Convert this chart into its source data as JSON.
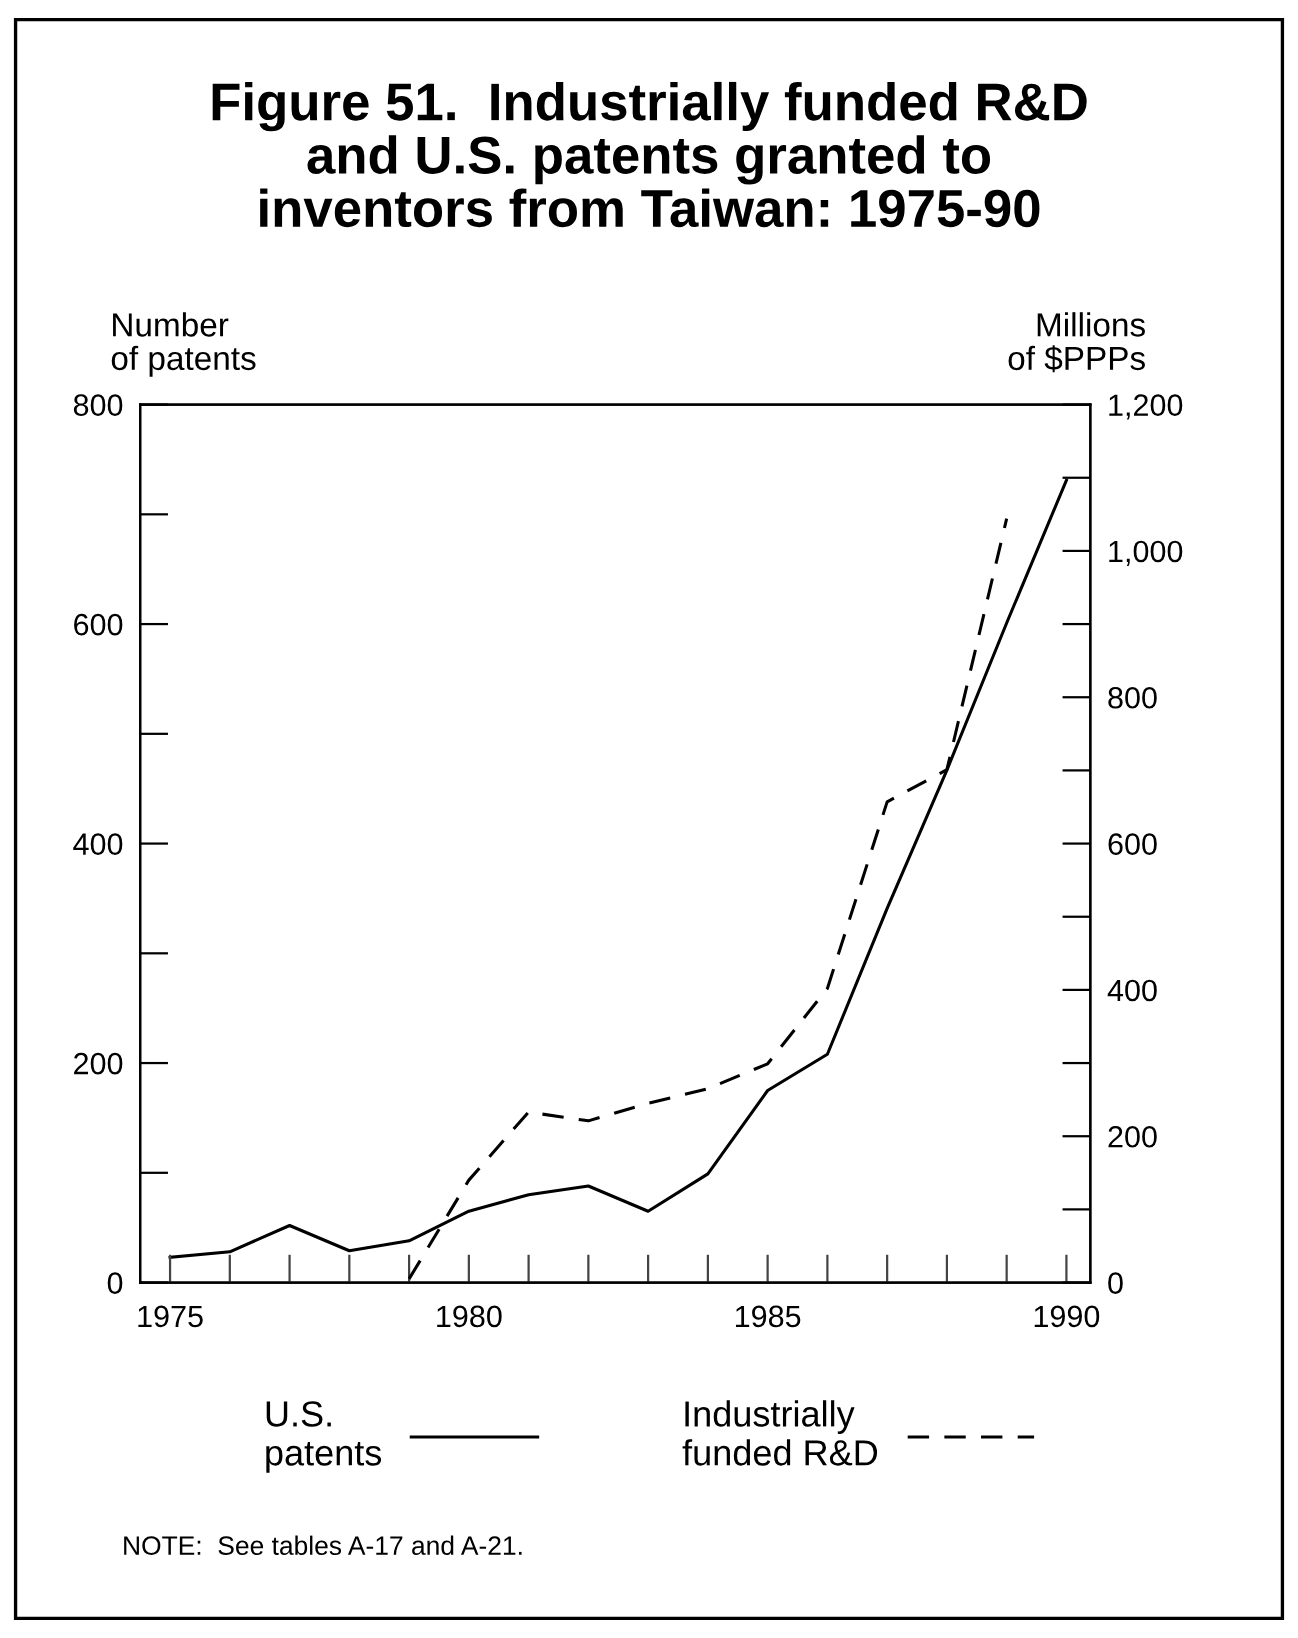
{
  "chart_data": {
    "type": "line",
    "title": "Figure 51.  Industrially funded R&D\nand U.S. patents granted to\ninventors from Taiwan: 1975-90",
    "ylabel": "Number\nof patents",
    "y2label": "Millions\nof $PPPs",
    "x": [
      1975,
      1976,
      1977,
      1978,
      1979,
      1980,
      1981,
      1982,
      1983,
      1984,
      1985,
      1986,
      1987,
      1988,
      1989,
      1990
    ],
    "series": [
      {
        "name": "U.S.\npatents",
        "color": "#000000",
        "line_style": "solid",
        "values": [
          23,
          28,
          52,
          29,
          38,
          65,
          80,
          88,
          65,
          99,
          175,
          208,
          341,
          467,
          601,
          731
        ]
      },
      {
        "name": "Industrially\nfunded R&D",
        "color": "#000000",
        "line_style": "dashed",
        "axis": "y2",
        "values": [
          null,
          null,
          null,
          null,
          5,
          140,
          233,
          221,
          245,
          265,
          299,
          402,
          657,
          701,
          1044,
          null
        ]
      }
    ],
    "xlim": [
      1974.5,
      1990.4
    ],
    "xticks": [
      1975,
      {
        "value": 1976,
        "label": null
      },
      {
        "value": 1977,
        "label": null
      },
      {
        "value": 1978,
        "label": null
      },
      {
        "value": 1979,
        "label": null
      },
      1980,
      {
        "value": 1981,
        "label": null
      },
      {
        "value": 1982,
        "label": null
      },
      {
        "value": 1983,
        "label": null
      },
      {
        "value": 1984,
        "label": null
      },
      1985,
      {
        "value": 1986,
        "label": null
      },
      {
        "value": 1987,
        "label": null
      },
      {
        "value": 1988,
        "label": null
      },
      {
        "value": 1989,
        "label": null
      },
      1990
    ],
    "ylim": [
      0,
      800
    ],
    "yticks": [
      0,
      {
        "value": 100,
        "label": null
      },
      200,
      {
        "value": 300,
        "label": null
      },
      400,
      {
        "value": 500,
        "label": null
      },
      600,
      {
        "value": 700,
        "label": null
      },
      800
    ],
    "y2lim": [
      0,
      1200
    ],
    "y2ticks": [
      0,
      {
        "value": 100,
        "label": null
      },
      200,
      {
        "value": 300,
        "label": null
      },
      400,
      {
        "value": 500,
        "label": null
      },
      600,
      {
        "value": 700,
        "label": null
      },
      800,
      {
        "value": 900,
        "label": null
      },
      {
        "value": 1000,
        "label": "1,000"
      },
      {
        "value": 1100,
        "label": null
      },
      {
        "value": 1200,
        "label": "1,200"
      }
    ],
    "grid": false,
    "legend": "bottom",
    "marker": "none",
    "annotations": [
      "NOTE:  See tables A-17 and A-21."
    ]
  }
}
